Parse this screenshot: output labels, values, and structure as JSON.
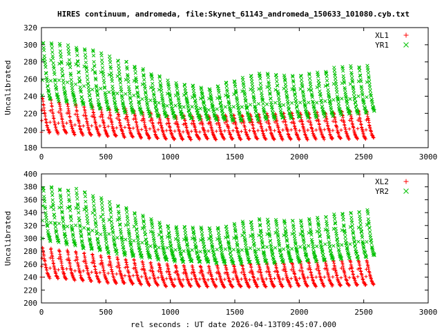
{
  "title": "HIRES continuum, andromeda, file:Skynet_61143_andromeda_150633_101080.cyb.txt",
  "xlabel": "rel seconds : UT date 2026-04-13T09:45:07.000",
  "colors": {
    "red": "#ff0000",
    "green": "#00c000",
    "axis": "#000000"
  },
  "chart_data": [
    {
      "type": "scatter",
      "title": "",
      "ylabel": "Uncalibrated",
      "xlim": [
        0,
        3000
      ],
      "ylim": [
        180,
        320
      ],
      "xticks": [
        0,
        500,
        1000,
        1500,
        2000,
        2500,
        3000
      ],
      "yticks": [
        180,
        200,
        220,
        240,
        260,
        280,
        300,
        320
      ],
      "legend_position": "top-right",
      "x_range": [
        0,
        2580
      ],
      "cycles": 40,
      "series": [
        {
          "name": "XL1",
          "marker": "plus",
          "color": "#ff0000",
          "peak_envelope": [
            [
              0,
              240
            ],
            [
              300,
              230
            ],
            [
              700,
              225
            ],
            [
              1000,
              218
            ],
            [
              1300,
              218
            ],
            [
              1700,
              220
            ],
            [
              2100,
              222
            ],
            [
              2500,
              224
            ],
            [
              2580,
              222
            ]
          ],
          "trough_envelope": [
            [
              0,
              198
            ],
            [
              500,
              194
            ],
            [
              1000,
              190
            ],
            [
              1500,
              190
            ],
            [
              2000,
              190
            ],
            [
              2580,
              191
            ]
          ]
        },
        {
          "name": "YR1",
          "marker": "cross",
          "color": "#00c000",
          "peak_envelope": [
            [
              0,
              305
            ],
            [
              300,
              300
            ],
            [
              700,
              280
            ],
            [
              1000,
              258
            ],
            [
              1300,
              250
            ],
            [
              1700,
              270
            ],
            [
              2000,
              265
            ],
            [
              2300,
              275
            ],
            [
              2580,
              278
            ]
          ],
          "trough_envelope": [
            [
              0,
              240
            ],
            [
              500,
              225
            ],
            [
              1000,
              215
            ],
            [
              1500,
              212
            ],
            [
              2000,
              215
            ],
            [
              2580,
              222
            ]
          ]
        }
      ]
    },
    {
      "type": "scatter",
      "title": "",
      "ylabel": "Uncalibrated",
      "xlim": [
        0,
        3000
      ],
      "ylim": [
        200,
        400
      ],
      "xticks": [
        0,
        500,
        1000,
        1500,
        2000,
        2500,
        3000
      ],
      "yticks": [
        200,
        220,
        240,
        260,
        280,
        300,
        320,
        340,
        360,
        380,
        400
      ],
      "legend_position": "top-right",
      "x_range": [
        0,
        2580
      ],
      "cycles": 40,
      "series": [
        {
          "name": "XL2",
          "marker": "plus",
          "color": "#ff0000",
          "peak_envelope": [
            [
              0,
              288
            ],
            [
              300,
              280
            ],
            [
              700,
              268
            ],
            [
              1000,
              260
            ],
            [
              1300,
              258
            ],
            [
              1700,
              262
            ],
            [
              2100,
              266
            ],
            [
              2500,
              268
            ],
            [
              2580,
              266
            ]
          ],
          "trough_envelope": [
            [
              0,
              240
            ],
            [
              500,
              232
            ],
            [
              1000,
              226
            ],
            [
              1500,
              225
            ],
            [
              2000,
              226
            ],
            [
              2580,
              228
            ]
          ]
        },
        {
          "name": "YR2",
          "marker": "cross",
          "color": "#00c000",
          "peak_envelope": [
            [
              0,
              382
            ],
            [
              300,
              378
            ],
            [
              700,
              345
            ],
            [
              1000,
              320
            ],
            [
              1300,
              318
            ],
            [
              1700,
              332
            ],
            [
              2000,
              330
            ],
            [
              2300,
              340
            ],
            [
              2580,
              348
            ]
          ],
          "trough_envelope": [
            [
              0,
              300
            ],
            [
              500,
              280
            ],
            [
              1000,
              265
            ],
            [
              1500,
              262
            ],
            [
              2000,
              264
            ],
            [
              2580,
              272
            ]
          ]
        }
      ]
    }
  ]
}
